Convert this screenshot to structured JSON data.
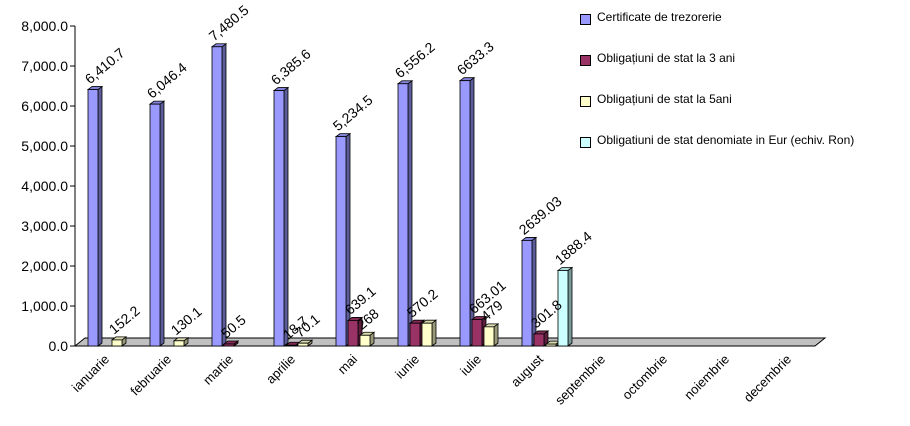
{
  "chart_data": {
    "type": "bar",
    "categories": [
      "ianuarie",
      "februarie",
      "martie",
      "aprilie",
      "mai",
      "iunie",
      "iulie",
      "august",
      "septembrie",
      "octombrie",
      "noiembrie",
      "decembrie"
    ],
    "series": [
      {
        "name": "Certificate de trezorerie",
        "color": "#9999ff",
        "values": [
          6410.7,
          6046.4,
          7480.5,
          6385.6,
          5234.5,
          6556.2,
          6633.3,
          2639.03,
          null,
          null,
          null,
          null
        ],
        "labels": [
          "6,410.7",
          "6,046.4",
          "7,480.5",
          "6,385.6",
          "5,234.5",
          "6,556.2",
          "6633.3",
          "2639.03",
          "",
          "",
          "",
          ""
        ]
      },
      {
        "name": "Obligațiuni de stat la 3 ani",
        "color": "#993366",
        "values": [
          null,
          null,
          50.5,
          18.7,
          639.1,
          570.2,
          663.01,
          301.8,
          null,
          null,
          null,
          null
        ],
        "labels": [
          "",
          "",
          "50.5",
          "18.7",
          "639.1",
          "570.2",
          "663.01",
          "301.8",
          "",
          "",
          "",
          ""
        ]
      },
      {
        "name": "Obligațiuni de stat la 5ani",
        "color": "#ffffcc",
        "values": [
          152.2,
          130.1,
          null,
          70.1,
          268,
          570.2,
          479,
          47,
          null,
          null,
          null,
          null
        ],
        "labels": [
          "152.2",
          "130.1",
          "",
          "70.1",
          "268",
          "",
          "479",
          "",
          "",
          "",
          "",
          ""
        ]
      },
      {
        "name": "Obligatiuni de stat denomiate in Eur (echiv. Ron)",
        "color": "#ccffff",
        "values": [
          null,
          null,
          null,
          null,
          null,
          null,
          null,
          1888.4,
          null,
          null,
          null,
          null
        ],
        "labels": [
          "",
          "",
          "",
          "",
          "",
          "",
          "",
          "1888.4",
          "",
          "",
          "",
          ""
        ]
      }
    ],
    "ylim": [
      0,
      8000
    ],
    "yticks": [
      "0.0",
      "1,000.0",
      "2,000.0",
      "3,000.0",
      "4,000.0",
      "5,000.0",
      "6,000.0",
      "7,000.0",
      "8,000.0"
    ],
    "grid": false,
    "legend": "right"
  }
}
